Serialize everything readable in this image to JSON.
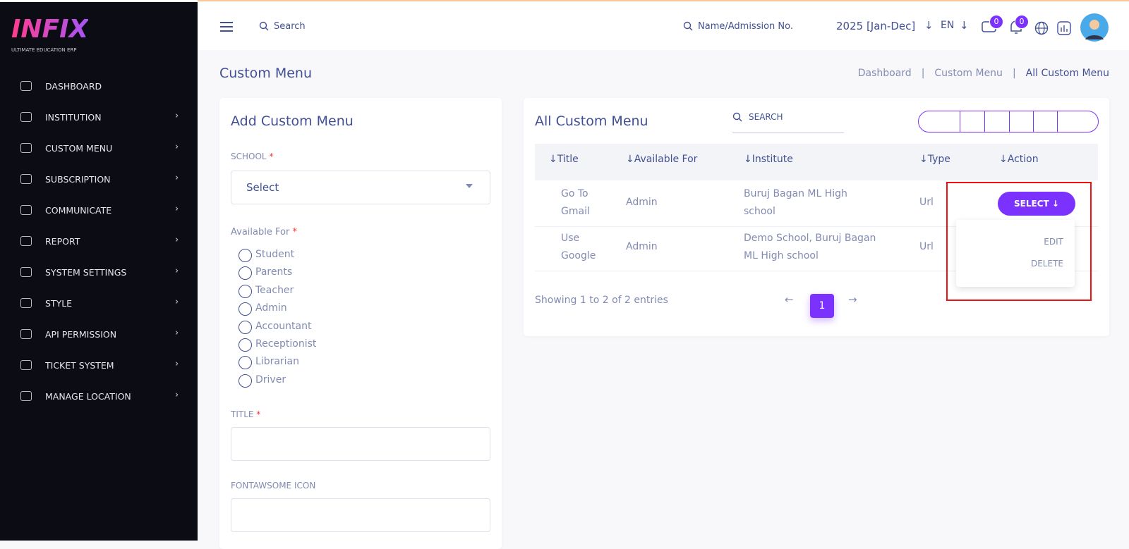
{
  "logo": {
    "name": "INFIX",
    "tagline": "ULTIMATE EDUCATION ERP"
  },
  "sidebar": {
    "items": [
      "DASHBOARD",
      "INSTITUTION",
      "CUSTOM MENU",
      "SUBSCRIPTION",
      "COMMUNICATE",
      "REPORT",
      "SYSTEM SETTINGS",
      "STYLE",
      "API PERMISSION",
      "TICKET SYSTEM",
      "MANAGE LOCATION"
    ]
  },
  "header": {
    "search": "Search",
    "student_search": "Name/Admission No.",
    "session": "2025 [Jan-Dec]",
    "language": "EN",
    "message_count": "0",
    "notification_count": "0"
  },
  "page": {
    "title": "Custom Menu",
    "breadcrumbs": [
      "Dashboard",
      "Custom Menu",
      "All Custom Menu"
    ]
  },
  "form": {
    "title": "Add Custom Menu",
    "school_label": "SCHOOL",
    "required": "*",
    "school_placeholder": "Select",
    "available_label": "Available For",
    "options": [
      "Student",
      "Parents",
      "Teacher",
      "Admin",
      "Accountant",
      "Receptionist",
      "Librarian",
      "Driver"
    ],
    "title_label": "TITLE",
    "icon_label": "FONTAWSOME ICON"
  },
  "table": {
    "title": "All Custom Menu",
    "search": "SEARCH",
    "columns": [
      "Title",
      "Available For",
      "Institute",
      "Type",
      "Action"
    ],
    "rows": [
      [
        "Go To Gmail",
        "Admin",
        "Buruj Bagan ML High school",
        "Url"
      ],
      [
        "Use Google",
        "Admin",
        "Demo School, Buruj Bagan ML High school",
        "Url"
      ]
    ],
    "action_button": "SELECT",
    "dropdown": [
      "EDIT",
      "DELETE"
    ],
    "footer": "Showing 1 to 2 of 2 entries",
    "page": "1"
  }
}
